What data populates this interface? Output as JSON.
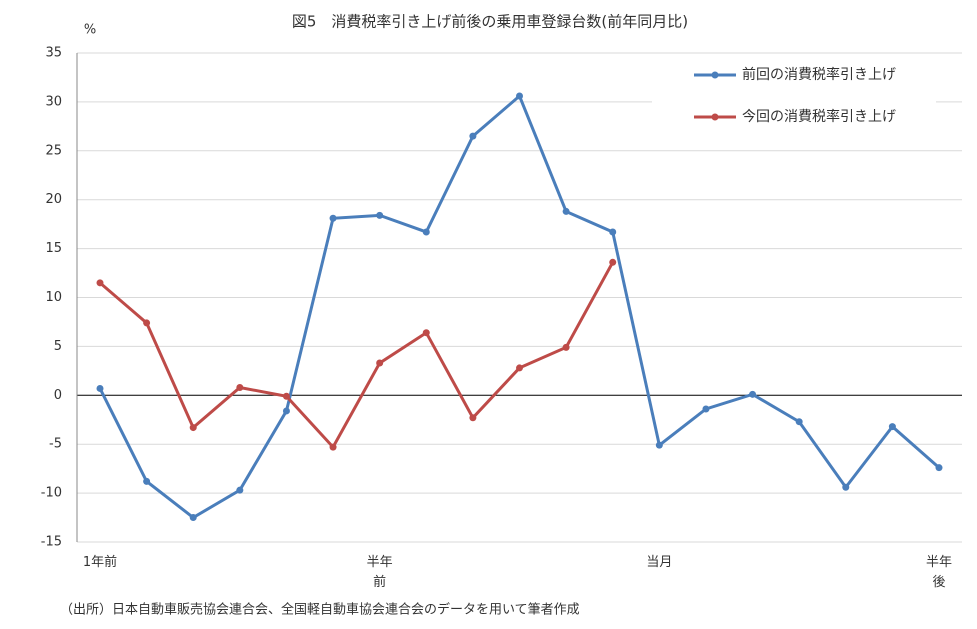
{
  "chart_data": {
    "type": "line",
    "title": "図5　消費税率引き上げ前後の乗用車登録台数(前年同月比)",
    "y_label": "%",
    "note": "（出所）日本自動車販売協会連合会、全国軽自動車協会連合会のデータを用いて筆者作成",
    "categories": [
      "1年前",
      null,
      null,
      null,
      null,
      null,
      "半年\n前",
      null,
      null,
      null,
      null,
      null,
      "当月",
      null,
      null,
      null,
      null,
      null,
      "半年\n後"
    ],
    "series": [
      {
        "name": "前回の消費税率引き上げ",
        "color": "#4a7ebb",
        "values": [
          0.7,
          -8.8,
          -12.5,
          -9.7,
          -1.6,
          18.1,
          18.4,
          16.7,
          26.5,
          30.6,
          18.8,
          16.7,
          -5.1,
          -1.4,
          0.1,
          -2.7,
          -9.4,
          -3.2,
          -7.4
        ]
      },
      {
        "name": "今回の消費税率引き上げ",
        "color": "#be4b48",
        "values": [
          11.5,
          7.4,
          -3.3,
          0.8,
          -0.1,
          -5.3,
          3.3,
          6.4,
          -2.3,
          2.8,
          4.9,
          13.6,
          null,
          null,
          null,
          null,
          null,
          null,
          null
        ]
      }
    ],
    "ylim": [
      -15,
      35
    ],
    "yticks": [
      -15,
      -10,
      -5,
      0,
      5,
      10,
      15,
      20,
      25,
      30,
      35
    ],
    "grid": true,
    "legend": "upper-right"
  }
}
